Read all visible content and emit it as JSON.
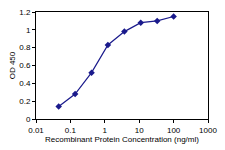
{
  "chart_data": {
    "type": "line",
    "x_label": "Recombinant Protein Concentration (ng/ml)",
    "y_label": "OD 450",
    "x": [
      0.0457,
      0.137,
      0.412,
      1.23,
      3.7,
      11.1,
      33.3,
      100
    ],
    "values": [
      0.14,
      0.28,
      0.52,
      0.83,
      0.98,
      1.08,
      1.1,
      1.15
    ],
    "color": "#1a1a8c",
    "marker": "diamond",
    "log": "x",
    "xlim": [
      0.01,
      1000
    ],
    "xticks": [
      0.01,
      0.1,
      1,
      10,
      100,
      1000
    ],
    "ylim": [
      0,
      1.2
    ],
    "yticks": [
      0,
      0.2,
      0.4,
      0.6,
      0.8,
      1,
      1.2
    ],
    "grid": false
  }
}
